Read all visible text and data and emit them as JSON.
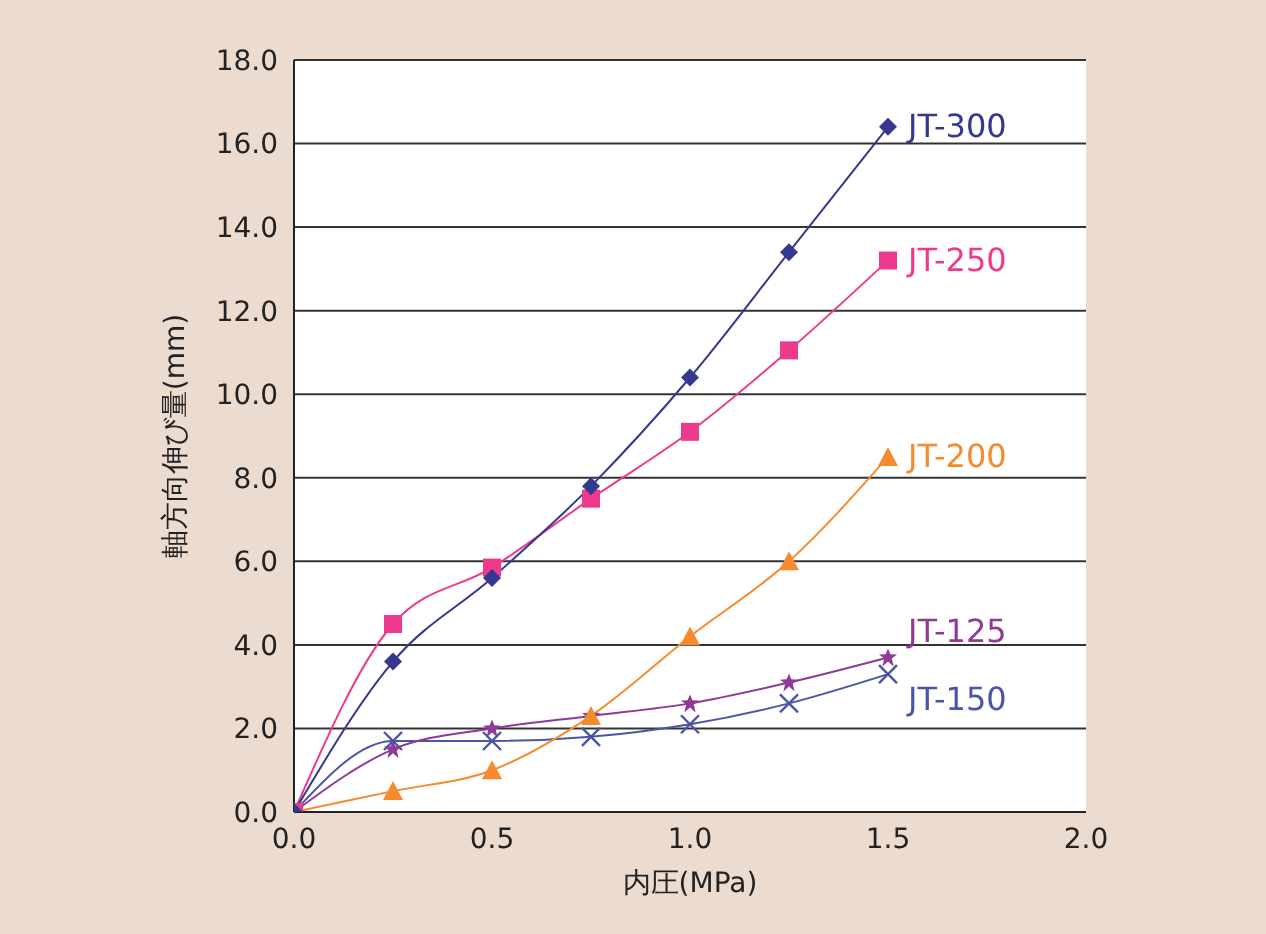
{
  "chart_data": {
    "type": "line",
    "xlabel": "内圧(MPa)",
    "ylabel": "軸方向伸び量(mm)",
    "x": [
      0,
      0.25,
      0.5,
      0.75,
      1.0,
      1.25,
      1.5
    ],
    "xlim": [
      0,
      2
    ],
    "xticks": [
      {
        "value": 0,
        "label": "0.0"
      },
      {
        "value": 0.5,
        "label": "0.5"
      },
      {
        "value": 1,
        "label": "1.0"
      },
      {
        "value": 1.5,
        "label": "1.5"
      },
      {
        "value": 2,
        "label": "2.0"
      }
    ],
    "ylim": [
      0,
      18
    ],
    "yticks": [
      {
        "value": 0,
        "label": "0.0"
      },
      {
        "value": 2,
        "label": "2.0"
      },
      {
        "value": 4,
        "label": "4.0"
      },
      {
        "value": 6,
        "label": "6.0"
      },
      {
        "value": 8,
        "label": "8.0"
      },
      {
        "value": 10,
        "label": "10.0"
      },
      {
        "value": 12,
        "label": "12.0"
      },
      {
        "value": 14,
        "label": "14.0"
      },
      {
        "value": 16,
        "label": "16.0"
      },
      {
        "value": 18,
        "label": "18.0"
      }
    ],
    "grid": "y",
    "legend": false,
    "series": [
      {
        "name": "JT-300",
        "color": "#35388f",
        "marker": "diamond",
        "values": [
          0,
          3.6,
          5.6,
          7.8,
          10.4,
          13.4,
          16.4
        ]
      },
      {
        "name": "JT-250",
        "color": "#ee3a8c",
        "marker": "square",
        "values": [
          0,
          4.5,
          5.85,
          7.5,
          9.1,
          11.05,
          13.2
        ]
      },
      {
        "name": "JT-200",
        "color": "#f58a2e",
        "marker": "triangle",
        "values": [
          0,
          0.5,
          1.0,
          2.3,
          4.2,
          6.0,
          8.5
        ]
      },
      {
        "name": "JT-125",
        "color": "#8e3a96",
        "marker": "star",
        "values": [
          0,
          1.5,
          2.0,
          2.3,
          2.6,
          3.1,
          3.7
        ]
      },
      {
        "name": "JT-150",
        "color": "#4a55a8",
        "marker": "cross",
        "values": [
          0,
          1.7,
          1.7,
          1.8,
          2.1,
          2.6,
          3.3
        ]
      }
    ]
  }
}
